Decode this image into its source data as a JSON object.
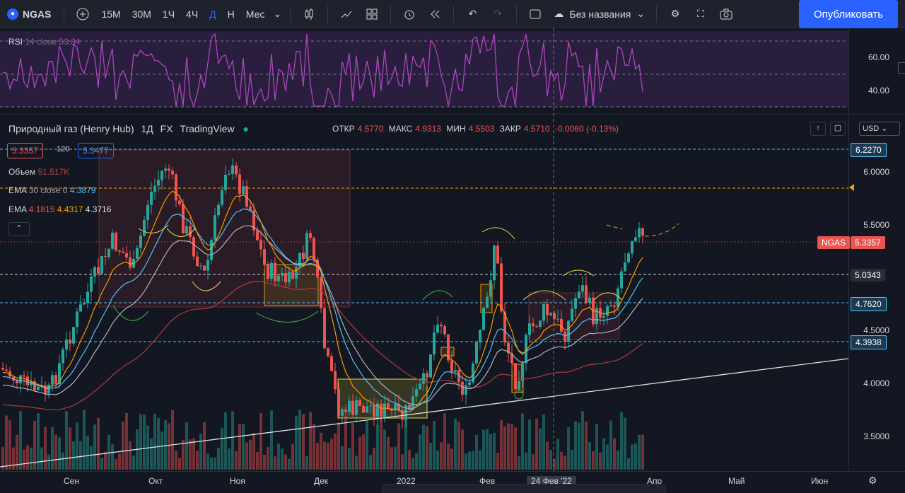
{
  "toolbar": {
    "symbol": "NGAS",
    "intervals": [
      "15М",
      "30М",
      "1Ч",
      "4Ч",
      "Д",
      "Н",
      "Мес"
    ],
    "active_interval": "Д",
    "layout_name": "Без названия",
    "publish_label": "Опубликовать"
  },
  "rsi": {
    "label": "RSI",
    "params": "14 close",
    "value": "53.84",
    "axis_ticks": [
      "60.00",
      "40.00"
    ]
  },
  "main": {
    "title": "Природный газ (Henry Hub)",
    "interval": "1Д",
    "market": "FX",
    "source": "TradingView",
    "ohlc": {
      "open_label": "ОТКР",
      "open": "4.5770",
      "high_label": "МАКС",
      "high": "4.9313",
      "low_label": "МИН",
      "low": "4.5503",
      "close_label": "ЗАКР",
      "close": "4.5710",
      "change": "-0.0060 (-0.13%)"
    },
    "sell_price": "5.3357",
    "spread": "120",
    "buy_price": "5.3477",
    "volume_label": "Объем",
    "volume_value": "51.517K",
    "ema30_label": "EMA",
    "ema30_params": "30 close 0",
    "ema30_value": "4.3879",
    "ema_label": "EMA",
    "ema_values": [
      "4.1815",
      "4.4317",
      "4.3716"
    ],
    "currency": "USD"
  },
  "price_axis": {
    "ticks": [
      "6.0000",
      "5.5000",
      "4.5000",
      "4.0000",
      "3.5000"
    ],
    "tags": {
      "level_top": "6.2270",
      "symbol_tag": "NGAS",
      "last_price": "5.3357",
      "level_mid": "5.0343",
      "level_blue": "4.7620",
      "level_low": "4.3938"
    }
  },
  "time_axis": {
    "labels": [
      "Сен",
      "Окт",
      "Ноя",
      "Дек",
      "2022",
      "Фев",
      "Апр",
      "Май",
      "Июн"
    ],
    "cursor_date": "24 Фев '22"
  },
  "colors": {
    "up": "#26a69a",
    "down": "#ef5350",
    "accent": "#2962ff",
    "rsi": "#ab47bc"
  }
}
